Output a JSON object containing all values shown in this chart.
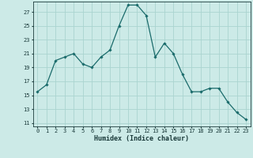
{
  "x": [
    0,
    1,
    2,
    3,
    4,
    5,
    6,
    7,
    8,
    9,
    10,
    11,
    12,
    13,
    14,
    15,
    16,
    17,
    18,
    19,
    20,
    21,
    22,
    23
  ],
  "y": [
    15.5,
    16.5,
    20,
    20.5,
    21,
    19.5,
    19,
    20.5,
    21.5,
    25,
    28,
    28,
    26.5,
    20.5,
    22.5,
    21,
    18,
    15.5,
    15.5,
    16,
    16,
    14,
    12.5,
    11.5
  ],
  "xlabel": "Humidex (Indice chaleur)",
  "xlim": [
    -0.5,
    23.5
  ],
  "ylim": [
    10.5,
    28.5
  ],
  "yticks": [
    11,
    13,
    15,
    17,
    19,
    21,
    23,
    25,
    27
  ],
  "xticks": [
    0,
    1,
    2,
    3,
    4,
    5,
    6,
    7,
    8,
    9,
    10,
    11,
    12,
    13,
    14,
    15,
    16,
    17,
    18,
    19,
    20,
    21,
    22,
    23
  ],
  "line_color": "#1a6b6b",
  "marker": "D",
  "marker_size": 1.8,
  "bg_color": "#cceae7",
  "grid_color": "#aad4d0",
  "font_color": "#1a3a3a",
  "tick_fontsize": 5.0,
  "xlabel_fontsize": 6.0
}
